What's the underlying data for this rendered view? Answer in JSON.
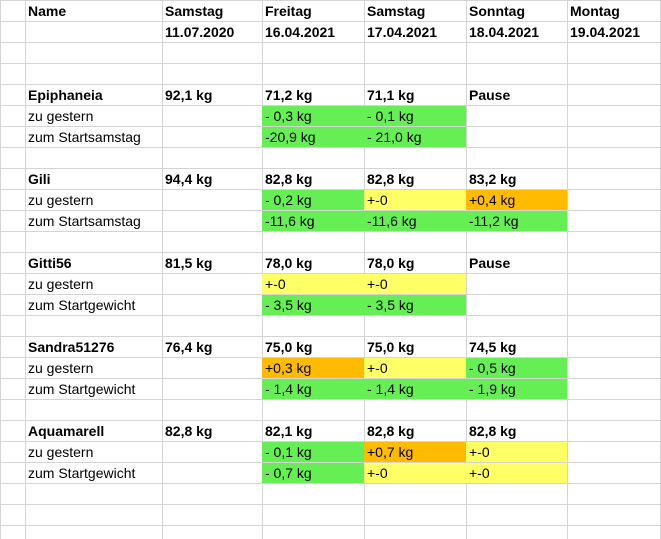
{
  "header": {
    "name_label": "Name",
    "days": [
      {
        "weekday": "Samstag",
        "date": "11.07.2020"
      },
      {
        "weekday": "Freitag",
        "date": "16.04.2021"
      },
      {
        "weekday": "Samstag",
        "date": "17.04.2021"
      },
      {
        "weekday": "Sonntag",
        "date": "18.04.2021"
      },
      {
        "weekday": "Montag",
        "date": "19.04.2021"
      }
    ]
  },
  "colors": {
    "green": "#66ee55",
    "yellow": "#ffff66",
    "orange": "#ffbb00"
  },
  "people": [
    {
      "name": "Epiphaneia",
      "weights": [
        "92,1 kg",
        "71,2 kg",
        "71,1 kg",
        "Pause",
        ""
      ],
      "diff_label": "zu gestern",
      "diff": [
        {
          "v": "",
          "c": ""
        },
        {
          "v": "- 0,3 kg",
          "c": "green"
        },
        {
          "v": "- 0,1 kg",
          "c": "green"
        },
        {
          "v": "",
          "c": ""
        },
        {
          "v": "",
          "c": ""
        }
      ],
      "start_label": "zum Startsamstag",
      "start": [
        {
          "v": "",
          "c": ""
        },
        {
          "v": "-20,9 kg",
          "c": "green"
        },
        {
          "v": "- 21,0 kg",
          "c": "green"
        },
        {
          "v": "",
          "c": ""
        },
        {
          "v": "",
          "c": ""
        }
      ]
    },
    {
      "name": "Gili",
      "weights": [
        "94,4 kg",
        "82,8 kg",
        "82,8 kg",
        "83,2 kg",
        ""
      ],
      "diff_label": "zu gestern",
      "diff": [
        {
          "v": "",
          "c": ""
        },
        {
          "v": "- 0,2 kg",
          "c": "green"
        },
        {
          "v": "+-0",
          "c": "yellow"
        },
        {
          "v": "+0,4 kg",
          "c": "orange"
        },
        {
          "v": "",
          "c": ""
        }
      ],
      "start_label": "zum Startsamstag",
      "start": [
        {
          "v": "",
          "c": ""
        },
        {
          "v": "-11,6 kg",
          "c": "green"
        },
        {
          "v": "-11,6 kg",
          "c": "green"
        },
        {
          "v": "-11,2 kg",
          "c": "green"
        },
        {
          "v": "",
          "c": ""
        }
      ]
    },
    {
      "name": "Gitti56",
      "weights": [
        "81,5 kg",
        "78,0 kg",
        "78,0 kg",
        "Pause",
        ""
      ],
      "diff_label": "zu gestern",
      "diff": [
        {
          "v": "",
          "c": ""
        },
        {
          "v": "+-0",
          "c": "yellow"
        },
        {
          "v": "+-0",
          "c": "yellow"
        },
        {
          "v": "",
          "c": ""
        },
        {
          "v": "",
          "c": ""
        }
      ],
      "start_label": "zum Startgewicht",
      "start": [
        {
          "v": "",
          "c": ""
        },
        {
          "v": "- 3,5 kg",
          "c": "green"
        },
        {
          "v": "- 3,5 kg",
          "c": "green"
        },
        {
          "v": "",
          "c": ""
        },
        {
          "v": "",
          "c": ""
        }
      ]
    },
    {
      "name": "Sandra51276",
      "weights": [
        "76,4 kg",
        "75,0 kg",
        "75,0 kg",
        "74,5 kg",
        ""
      ],
      "diff_label": "zu gestern",
      "diff": [
        {
          "v": "",
          "c": ""
        },
        {
          "v": "+0,3 kg",
          "c": "orange"
        },
        {
          "v": "+-0",
          "c": "yellow"
        },
        {
          "v": "- 0,5 kg",
          "c": "green"
        },
        {
          "v": "",
          "c": ""
        }
      ],
      "start_label": "zum Startgewicht",
      "start": [
        {
          "v": "",
          "c": ""
        },
        {
          "v": "- 1,4 kg",
          "c": "green"
        },
        {
          "v": "- 1,4 kg",
          "c": "green"
        },
        {
          "v": "- 1,9 kg",
          "c": "green"
        },
        {
          "v": "",
          "c": ""
        }
      ]
    },
    {
      "name": "Aquamarell",
      "weights": [
        "82,8 kg",
        "82,1 kg",
        "82,8 kg",
        "82,8 kg",
        ""
      ],
      "diff_label": "zu gestern",
      "diff": [
        {
          "v": "",
          "c": ""
        },
        {
          "v": "- 0,1 kg",
          "c": "green"
        },
        {
          "v": "+0,7 kg",
          "c": "orange"
        },
        {
          "v": "+-0",
          "c": "yellow"
        },
        {
          "v": "",
          "c": ""
        }
      ],
      "start_label": "zum Startgewicht",
      "start": [
        {
          "v": "",
          "c": ""
        },
        {
          "v": "- 0,7 kg",
          "c": "green"
        },
        {
          "v": "+-0",
          "c": "yellow"
        },
        {
          "v": "+-0",
          "c": "yellow"
        },
        {
          "v": "",
          "c": ""
        }
      ]
    }
  ]
}
